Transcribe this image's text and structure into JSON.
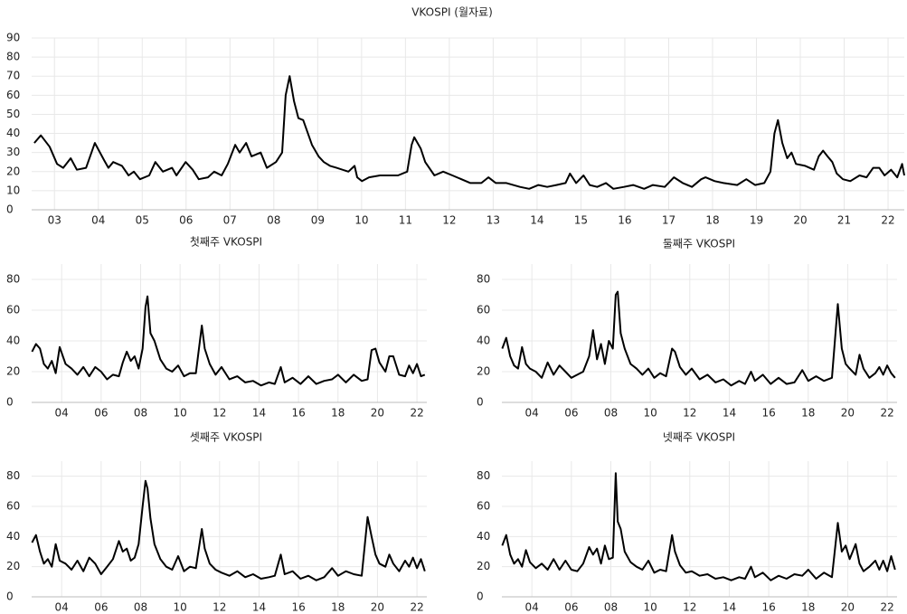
{
  "chart_data": [
    {
      "type": "line",
      "title": "VKOSPI (월자료)",
      "color": "#000000",
      "grid": true,
      "xlim": [
        2002.98,
        2022.87
      ],
      "ylim": [
        0,
        90
      ],
      "yticks": [
        0,
        10,
        20,
        30,
        40,
        50,
        60,
        70,
        80,
        90
      ],
      "xticks": [
        {
          "value": 2003.5,
          "label": "03"
        },
        {
          "value": 2004.5,
          "label": "04"
        },
        {
          "value": 2005.5,
          "label": "05"
        },
        {
          "value": 2006.5,
          "label": "06"
        },
        {
          "value": 2007.5,
          "label": "07"
        },
        {
          "value": 2008.5,
          "label": "08"
        },
        {
          "value": 2009.5,
          "label": "09"
        },
        {
          "value": 2010.5,
          "label": "10"
        },
        {
          "value": 2011.5,
          "label": "11"
        },
        {
          "value": 2012.5,
          "label": "12"
        },
        {
          "value": 2013.5,
          "label": "13"
        },
        {
          "value": 2014.5,
          "label": "14"
        },
        {
          "value": 2015.5,
          "label": "15"
        },
        {
          "value": 2016.5,
          "label": "16"
        },
        {
          "value": 2017.5,
          "label": "17"
        },
        {
          "value": 2018.5,
          "label": "18"
        },
        {
          "value": 2019.5,
          "label": "19"
        },
        {
          "value": 2020.5,
          "label": "20"
        },
        {
          "value": 2021.5,
          "label": "21"
        },
        {
          "value": 2022.5,
          "label": "22"
        }
      ],
      "x": [
        2003.04,
        2003.19,
        2003.39,
        2003.56,
        2003.7,
        2003.87,
        2004.01,
        2004.22,
        2004.42,
        2004.63,
        2004.73,
        2004.84,
        2005.04,
        2005.19,
        2005.31,
        2005.45,
        2005.66,
        2005.8,
        2005.97,
        2006.18,
        2006.28,
        2006.49,
        2006.65,
        2006.79,
        2007.0,
        2007.14,
        2007.31,
        2007.45,
        2007.62,
        2007.72,
        2007.87,
        2007.99,
        2008.2,
        2008.34,
        2008.55,
        2008.69,
        2008.77,
        2008.86,
        2008.96,
        2009.06,
        2009.17,
        2009.37,
        2009.52,
        2009.64,
        2009.78,
        2009.93,
        2010.2,
        2010.34,
        2010.4,
        2010.51,
        2010.67,
        2010.92,
        2011.12,
        2011.33,
        2011.54,
        2011.64,
        2011.7,
        2011.85,
        2011.95,
        2012.16,
        2012.36,
        2012.57,
        2012.98,
        2013.23,
        2013.39,
        2013.56,
        2013.8,
        2014.11,
        2014.32,
        2014.53,
        2014.73,
        2014.94,
        2015.15,
        2015.25,
        2015.39,
        2015.56,
        2015.7,
        2015.87,
        2016.07,
        2016.24,
        2016.48,
        2016.69,
        2016.94,
        2017.14,
        2017.41,
        2017.62,
        2017.82,
        2018.03,
        2018.24,
        2018.34,
        2018.55,
        2018.75,
        2019.06,
        2019.27,
        2019.47,
        2019.68,
        2019.82,
        2019.91,
        2019.99,
        2020.09,
        2020.2,
        2020.3,
        2020.4,
        2020.61,
        2020.81,
        2020.92,
        2021.02,
        2021.12,
        2021.23,
        2021.33,
        2021.47,
        2021.64,
        2021.85,
        2022.01,
        2022.16,
        2022.3,
        2022.42,
        2022.57,
        2022.71,
        2022.82,
        2022.87
      ],
      "values": [
        35,
        39,
        33,
        24,
        22,
        27,
        21,
        22,
        35,
        26,
        22,
        25,
        23,
        18,
        20,
        16,
        18,
        25,
        20,
        22,
        18,
        25,
        21,
        16,
        17,
        20,
        18,
        24,
        34,
        30,
        35,
        28,
        30,
        22,
        25,
        30,
        60,
        70,
        57,
        48,
        47,
        34,
        28,
        25,
        23,
        22,
        20,
        23,
        17,
        15,
        17,
        18,
        18,
        18,
        20,
        34,
        38,
        32,
        25,
        18,
        20,
        18,
        14,
        14,
        17,
        14,
        14,
        12,
        11,
        13,
        12,
        13,
        14,
        19,
        14,
        18,
        13,
        12,
        14,
        11,
        12,
        13,
        11,
        13,
        12,
        17,
        14,
        12,
        16,
        17,
        15,
        14,
        13,
        16,
        13,
        14,
        20,
        40,
        47,
        35,
        27,
        30,
        24,
        23,
        21,
        28,
        31,
        28,
        25,
        19,
        16,
        15,
        18,
        17,
        22,
        22,
        18,
        21,
        17,
        24,
        18
      ]
    },
    {
      "type": "line",
      "title": "첫째주 VKOSPI",
      "color": "#000000",
      "grid": true,
      "xlim": [
        2002.98,
        2023.0
      ],
      "ylim": [
        0,
        90
      ],
      "yticks": [
        0,
        20,
        40,
        60,
        80
      ],
      "xticks": [
        {
          "value": 2004.5,
          "label": "04"
        },
        {
          "value": 2006.5,
          "label": "06"
        },
        {
          "value": 2008.5,
          "label": "08"
        },
        {
          "value": 2010.5,
          "label": "10"
        },
        {
          "value": 2012.5,
          "label": "12"
        },
        {
          "value": 2014.5,
          "label": "14"
        },
        {
          "value": 2016.5,
          "label": "16"
        },
        {
          "value": 2018.5,
          "label": "18"
        },
        {
          "value": 2020.5,
          "label": "20"
        },
        {
          "value": 2022.5,
          "label": "22"
        }
      ],
      "x": [
        2003.0,
        2003.2,
        2003.4,
        2003.6,
        2003.8,
        2004.0,
        2004.2,
        2004.4,
        2004.7,
        2005.0,
        2005.3,
        2005.6,
        2005.9,
        2006.2,
        2006.5,
        2006.8,
        2007.1,
        2007.4,
        2007.6,
        2007.8,
        2008.0,
        2008.2,
        2008.4,
        2008.6,
        2008.75,
        2008.85,
        2009.0,
        2009.2,
        2009.5,
        2009.8,
        2010.1,
        2010.4,
        2010.7,
        2011.0,
        2011.3,
        2011.6,
        2011.75,
        2012.0,
        2012.3,
        2012.6,
        2013.0,
        2013.4,
        2013.8,
        2014.2,
        2014.6,
        2015.0,
        2015.3,
        2015.6,
        2015.8,
        2016.2,
        2016.6,
        2017.0,
        2017.4,
        2017.8,
        2018.2,
        2018.5,
        2018.9,
        2019.3,
        2019.7,
        2020.0,
        2020.2,
        2020.4,
        2020.6,
        2020.9,
        2021.1,
        2021.3,
        2021.6,
        2021.9,
        2022.1,
        2022.3,
        2022.5,
        2022.7,
        2022.9
      ],
      "values": [
        33,
        38,
        35,
        25,
        22,
        27,
        19,
        36,
        25,
        22,
        18,
        23,
        17,
        23,
        20,
        15,
        18,
        17,
        26,
        33,
        27,
        30,
        22,
        35,
        62,
        69,
        45,
        40,
        28,
        22,
        20,
        24,
        17,
        19,
        19,
        50,
        35,
        25,
        18,
        23,
        15,
        17,
        13,
        14,
        11,
        13,
        12,
        23,
        13,
        16,
        12,
        17,
        12,
        14,
        15,
        18,
        13,
        18,
        14,
        15,
        34,
        35,
        26,
        20,
        30,
        30,
        18,
        17,
        24,
        19,
        25,
        17,
        18
      ]
    },
    {
      "type": "line",
      "title": "둘째주 VKOSPI",
      "color": "#000000",
      "grid": true,
      "xlim": [
        2002.98,
        2023.0
      ],
      "ylim": [
        0,
        90
      ],
      "yticks": [
        0,
        20,
        40,
        60,
        80
      ],
      "xticks": [
        {
          "value": 2004.5,
          "label": "04"
        },
        {
          "value": 2006.5,
          "label": "06"
        },
        {
          "value": 2008.5,
          "label": "08"
        },
        {
          "value": 2010.5,
          "label": "10"
        },
        {
          "value": 2012.5,
          "label": "12"
        },
        {
          "value": 2014.5,
          "label": "14"
        },
        {
          "value": 2016.5,
          "label": "16"
        },
        {
          "value": 2018.5,
          "label": "18"
        },
        {
          "value": 2020.5,
          "label": "20"
        },
        {
          "value": 2022.5,
          "label": "22"
        }
      ],
      "x": [
        2003.0,
        2003.2,
        2003.4,
        2003.6,
        2003.8,
        2004.0,
        2004.2,
        2004.4,
        2004.7,
        2005.0,
        2005.3,
        2005.6,
        2005.9,
        2006.2,
        2006.5,
        2006.8,
        2007.1,
        2007.4,
        2007.6,
        2007.8,
        2008.0,
        2008.2,
        2008.4,
        2008.6,
        2008.75,
        2008.85,
        2009.0,
        2009.2,
        2009.5,
        2009.8,
        2010.1,
        2010.4,
        2010.7,
        2011.0,
        2011.3,
        2011.6,
        2011.75,
        2012.0,
        2012.3,
        2012.6,
        2013.0,
        2013.4,
        2013.8,
        2014.2,
        2014.6,
        2015.0,
        2015.3,
        2015.6,
        2015.8,
        2016.2,
        2016.6,
        2017.0,
        2017.4,
        2017.8,
        2018.2,
        2018.5,
        2018.9,
        2019.3,
        2019.7,
        2020.0,
        2020.2,
        2020.4,
        2020.6,
        2020.9,
        2021.1,
        2021.3,
        2021.6,
        2021.9,
        2022.1,
        2022.3,
        2022.5,
        2022.7,
        2022.9
      ],
      "values": [
        35,
        42,
        30,
        24,
        22,
        36,
        25,
        22,
        20,
        16,
        26,
        18,
        24,
        20,
        16,
        18,
        20,
        30,
        47,
        28,
        38,
        25,
        40,
        35,
        70,
        72,
        45,
        35,
        25,
        22,
        18,
        22,
        16,
        19,
        17,
        35,
        33,
        23,
        18,
        22,
        15,
        18,
        13,
        15,
        11,
        14,
        12,
        20,
        14,
        18,
        12,
        16,
        12,
        13,
        21,
        14,
        17,
        14,
        16,
        64,
        35,
        25,
        22,
        18,
        31,
        22,
        16,
        19,
        23,
        18,
        24,
        19,
        16
      ]
    },
    {
      "type": "line",
      "title": "셋째주 VKOSPI",
      "color": "#000000",
      "grid": true,
      "xlim": [
        2002.98,
        2023.0
      ],
      "ylim": [
        0,
        90
      ],
      "yticks": [
        0,
        20,
        40,
        60,
        80
      ],
      "xticks": [
        {
          "value": 2004.5,
          "label": "04"
        },
        {
          "value": 2006.5,
          "label": "06"
        },
        {
          "value": 2008.5,
          "label": "08"
        },
        {
          "value": 2010.5,
          "label": "10"
        },
        {
          "value": 2012.5,
          "label": "12"
        },
        {
          "value": 2014.5,
          "label": "14"
        },
        {
          "value": 2016.5,
          "label": "16"
        },
        {
          "value": 2018.5,
          "label": "18"
        },
        {
          "value": 2020.5,
          "label": "20"
        },
        {
          "value": 2022.5,
          "label": "22"
        }
      ],
      "x": [
        2003.0,
        2003.2,
        2003.4,
        2003.6,
        2003.8,
        2004.0,
        2004.2,
        2004.4,
        2004.7,
        2005.0,
        2005.3,
        2005.6,
        2005.9,
        2006.2,
        2006.5,
        2006.8,
        2007.1,
        2007.4,
        2007.6,
        2007.8,
        2008.0,
        2008.2,
        2008.4,
        2008.6,
        2008.75,
        2008.85,
        2009.0,
        2009.2,
        2009.5,
        2009.8,
        2010.1,
        2010.4,
        2010.7,
        2011.0,
        2011.3,
        2011.6,
        2011.75,
        2012.0,
        2012.3,
        2012.6,
        2013.0,
        2013.4,
        2013.8,
        2014.2,
        2014.6,
        2015.0,
        2015.3,
        2015.6,
        2015.8,
        2016.2,
        2016.6,
        2017.0,
        2017.4,
        2017.8,
        2018.2,
        2018.5,
        2018.9,
        2019.3,
        2019.7,
        2020.0,
        2020.2,
        2020.4,
        2020.6,
        2020.9,
        2021.1,
        2021.3,
        2021.6,
        2021.9,
        2022.1,
        2022.3,
        2022.5,
        2022.7,
        2022.9
      ],
      "values": [
        36,
        41,
        30,
        22,
        25,
        20,
        35,
        24,
        22,
        18,
        24,
        17,
        26,
        22,
        15,
        20,
        25,
        37,
        30,
        32,
        24,
        26,
        35,
        60,
        77,
        72,
        52,
        35,
        25,
        20,
        18,
        27,
        17,
        20,
        19,
        45,
        32,
        22,
        18,
        16,
        14,
        17,
        13,
        15,
        12,
        13,
        14,
        28,
        15,
        17,
        12,
        14,
        11,
        13,
        19,
        14,
        17,
        15,
        14,
        53,
        40,
        28,
        22,
        20,
        28,
        22,
        17,
        24,
        20,
        26,
        19,
        25,
        17
      ]
    },
    {
      "type": "line",
      "title": "넷째주 VKOSPI",
      "color": "#000000",
      "grid": true,
      "xlim": [
        2002.98,
        2023.0
      ],
      "ylim": [
        0,
        90
      ],
      "yticks": [
        0,
        20,
        40,
        60,
        80
      ],
      "xticks": [
        {
          "value": 2004.5,
          "label": "04"
        },
        {
          "value": 2006.5,
          "label": "06"
        },
        {
          "value": 2008.5,
          "label": "08"
        },
        {
          "value": 2010.5,
          "label": "10"
        },
        {
          "value": 2012.5,
          "label": "12"
        },
        {
          "value": 2014.5,
          "label": "14"
        },
        {
          "value": 2016.5,
          "label": "16"
        },
        {
          "value": 2018.5,
          "label": "18"
        },
        {
          "value": 2020.5,
          "label": "20"
        },
        {
          "value": 2022.5,
          "label": "22"
        }
      ],
      "x": [
        2003.0,
        2003.2,
        2003.4,
        2003.6,
        2003.8,
        2004.0,
        2004.2,
        2004.4,
        2004.7,
        2005.0,
        2005.3,
        2005.6,
        2005.9,
        2006.2,
        2006.5,
        2006.8,
        2007.1,
        2007.4,
        2007.6,
        2007.8,
        2008.0,
        2008.2,
        2008.4,
        2008.6,
        2008.75,
        2008.85,
        2009.0,
        2009.2,
        2009.5,
        2009.8,
        2010.1,
        2010.4,
        2010.7,
        2011.0,
        2011.3,
        2011.6,
        2011.75,
        2012.0,
        2012.3,
        2012.6,
        2013.0,
        2013.4,
        2013.8,
        2014.2,
        2014.6,
        2015.0,
        2015.3,
        2015.6,
        2015.8,
        2016.2,
        2016.6,
        2017.0,
        2017.4,
        2017.8,
        2018.2,
        2018.5,
        2018.9,
        2019.3,
        2019.7,
        2020.0,
        2020.2,
        2020.4,
        2020.6,
        2020.9,
        2021.1,
        2021.3,
        2021.6,
        2021.9,
        2022.1,
        2022.3,
        2022.5,
        2022.7,
        2022.9
      ],
      "values": [
        34,
        41,
        28,
        22,
        25,
        20,
        31,
        23,
        19,
        22,
        18,
        25,
        18,
        24,
        18,
        17,
        22,
        33,
        28,
        32,
        22,
        34,
        25,
        26,
        82,
        50,
        45,
        30,
        23,
        20,
        18,
        24,
        16,
        18,
        17,
        41,
        30,
        21,
        16,
        17,
        14,
        15,
        12,
        13,
        11,
        13,
        12,
        20,
        13,
        16,
        11,
        14,
        12,
        15,
        14,
        18,
        12,
        16,
        13,
        49,
        30,
        34,
        25,
        35,
        22,
        17,
        20,
        24,
        18,
        24,
        17,
        27,
        18
      ]
    }
  ]
}
